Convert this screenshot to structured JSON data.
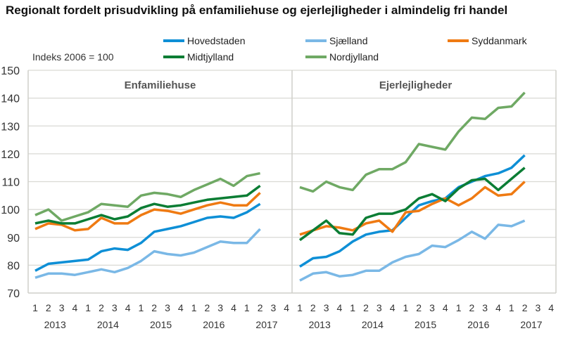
{
  "chart_data": {
    "type": "line",
    "title": "Regionalt fordelt prisudvikling på enfamiliehuse og ejerlejligheder i almindelig fri handel",
    "ylabel": "Indeks 2006 = 100",
    "ylim": [
      70,
      150
    ],
    "yticks": [
      "70",
      "80",
      "90",
      "100",
      "110",
      "120",
      "130",
      "140",
      "150"
    ],
    "grid": true,
    "legend_placement": "top",
    "quarter_labels": [
      "1",
      "2",
      "3",
      "4",
      "1",
      "2",
      "3",
      "4",
      "1",
      "2",
      "3",
      "4",
      "1",
      "2",
      "3",
      "4",
      "1",
      "2",
      "3",
      "4"
    ],
    "years": [
      "2013",
      "2014",
      "2015",
      "2016",
      "2017"
    ],
    "colors": {
      "Hovedstaden": "#0e8fd6",
      "Sjælland": "#7ab8e6",
      "Syddanmark": "#ef7a12",
      "Midtjylland": "#0b7d34",
      "Nordjylland": "#6fa964"
    },
    "legend": [
      "Hovedstaden",
      "Sjælland",
      "Syddanmark",
      "Midtjylland",
      "Nordjylland"
    ],
    "panels": [
      {
        "title": "Enfamiliehuse",
        "series": [
          {
            "name": "Hovedstaden",
            "values": [
              78,
              80.5,
              81,
              81.5,
              82,
              85,
              86,
              85.5,
              88,
              92,
              93,
              94,
              95.5,
              97,
              97.5,
              97,
              99,
              102
            ]
          },
          {
            "name": "Sjælland",
            "values": [
              75.5,
              77,
              77,
              76.5,
              77.5,
              78.5,
              77.5,
              79,
              81.5,
              85,
              84,
              83.5,
              84.5,
              86.5,
              88.5,
              88,
              88,
              93
            ]
          },
          {
            "name": "Syddanmark",
            "values": [
              93,
              95,
              94.5,
              92.5,
              93,
              97,
              95,
              95,
              98,
              100,
              99.5,
              98.5,
              100,
              101.5,
              102.5,
              101.5,
              101.5,
              106
            ]
          },
          {
            "name": "Midtjylland",
            "values": [
              95,
              96,
              95,
              95,
              96.5,
              98,
              96.5,
              97.5,
              100.5,
              102,
              101,
              101.5,
              102.5,
              103.5,
              104,
              104.5,
              105,
              108.5
            ]
          },
          {
            "name": "Nordjylland",
            "values": [
              98,
              100,
              96,
              97.5,
              99,
              102,
              101.5,
              101,
              105,
              106,
              105.5,
              104.5,
              107,
              109,
              111,
              108.5,
              112,
              113
            ]
          }
        ]
      },
      {
        "title": "Ejerlejligheder",
        "series": [
          {
            "name": "Hovedstaden",
            "values": [
              79.5,
              82.5,
              83,
              85,
              88.5,
              91,
              92,
              92.5,
              97,
              101.5,
              103,
              104,
              108,
              110,
              112,
              113,
              115,
              119.5
            ]
          },
          {
            "name": "Sjælland",
            "values": [
              74.5,
              77,
              77.5,
              76,
              76.5,
              78,
              78,
              81,
              83,
              84,
              87,
              86.5,
              89,
              92,
              89.5,
              94.5,
              94,
              96
            ]
          },
          {
            "name": "Syddanmark",
            "values": [
              91,
              92.5,
              94,
              93.5,
              92.5,
              95,
              96,
              92,
              99,
              99.5,
              102,
              104,
              101.5,
              104,
              108,
              105,
              105.5,
              110
            ]
          },
          {
            "name": "Midtjylland",
            "values": [
              89,
              92.5,
              96,
              91.5,
              91,
              97,
              98.5,
              98.5,
              100,
              104,
              105.5,
              103,
              107.5,
              110.5,
              111,
              107,
              111,
              115
            ]
          },
          {
            "name": "Nordjylland",
            "values": [
              108,
              106.5,
              110,
              108,
              107,
              112.5,
              114.5,
              114.5,
              117,
              123.5,
              122.5,
              121.5,
              128,
              133,
              132.5,
              136.5,
              137,
              142
            ]
          }
        ]
      }
    ]
  }
}
